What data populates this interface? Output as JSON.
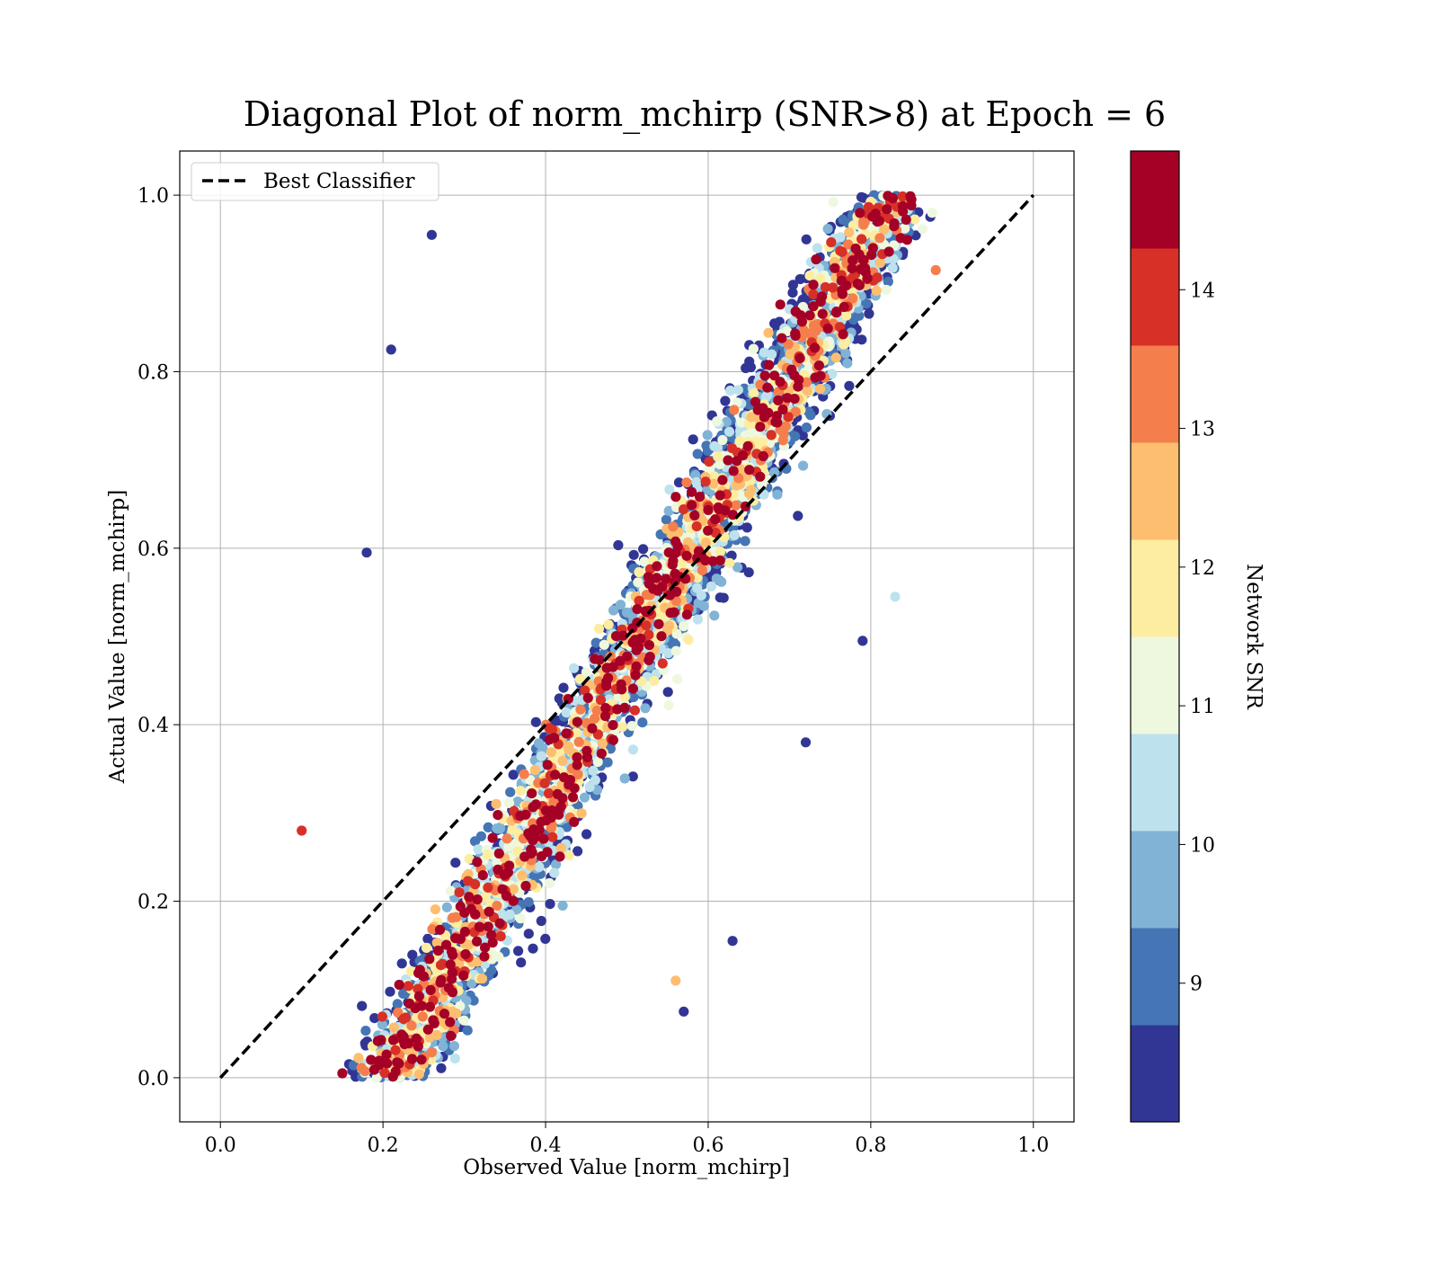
{
  "chart_data": {
    "type": "scatter",
    "title": "Diagonal Plot of norm_mchirp (SNR>8) at Epoch = 6",
    "xlabel": "Observed Value [norm_mchirp]",
    "ylabel": "Actual Value [norm_mchirp]",
    "xlim": [
      -0.05,
      1.05
    ],
    "ylim": [
      -0.05,
      1.05
    ],
    "xticks": [
      "0.0",
      "0.2",
      "0.4",
      "0.6",
      "0.8",
      "1.0"
    ],
    "yticks": [
      "0.0",
      "0.2",
      "0.4",
      "0.6",
      "0.8",
      "1.0"
    ],
    "grid": true,
    "legend": {
      "placement": "top-left",
      "entries": [
        {
          "label": "Best Classifier",
          "style": "dashed",
          "color": "#000000"
        }
      ]
    },
    "reference_line": {
      "x": [
        0.0,
        1.0
      ],
      "y": [
        0.0,
        1.0
      ]
    },
    "colorbar": {
      "label": "Network SNR",
      "range": [
        8,
        15
      ],
      "ticks": [
        "9",
        "10",
        "11",
        "12",
        "13",
        "14"
      ],
      "colors": [
        "#313695",
        "#4575b4",
        "#80b3d6",
        "#bde2ee",
        "#eef8df",
        "#fdeda1",
        "#fdbe70",
        "#f57e4d",
        "#d73027",
        "#a50026"
      ]
    },
    "series_description": "dense scatter of points clustered around the diagonal; low-SNR points (blue) spread farther from the diagonal, high-SNR points (dark red) concentrate along it",
    "sample_points": [
      {
        "x": 0.26,
        "y": 0.955,
        "snr": 8.5
      },
      {
        "x": 0.21,
        "y": 0.825,
        "snr": 8.4
      },
      {
        "x": 0.18,
        "y": 0.595,
        "snr": 8.3
      },
      {
        "x": 0.79,
        "y": 0.495,
        "snr": 8.3
      },
      {
        "x": 0.72,
        "y": 0.38,
        "snr": 8.4
      },
      {
        "x": 0.63,
        "y": 0.155,
        "snr": 8.6
      },
      {
        "x": 0.57,
        "y": 0.075,
        "snr": 8.7
      },
      {
        "x": 0.85,
        "y": 0.995,
        "snr": 14.5
      },
      {
        "x": 0.15,
        "y": 0.005,
        "snr": 14.6
      },
      {
        "x": 0.88,
        "y": 0.915,
        "snr": 13.2
      },
      {
        "x": 0.1,
        "y": 0.28,
        "snr": 13.8
      },
      {
        "x": 0.83,
        "y": 0.545,
        "snr": 10.6
      },
      {
        "x": 0.56,
        "y": 0.11,
        "snr": 12.7
      }
    ]
  }
}
